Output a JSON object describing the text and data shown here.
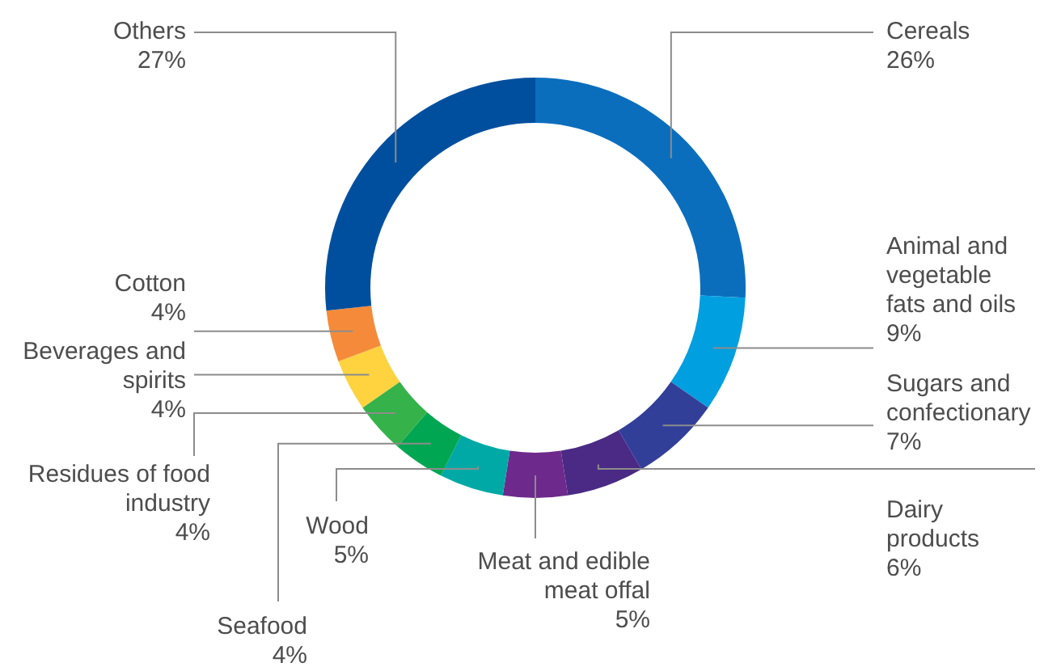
{
  "chart_data": {
    "type": "donut",
    "categories": [
      "Cereals",
      "Animal and vegetable fats and oils",
      "Sugars and confectionary",
      "Dairy products",
      "Meat and edible meat offal",
      "Wood",
      "Seafood",
      "Residues of food industry",
      "Beverages and spirits",
      "Cotton",
      "Others"
    ],
    "values": [
      26,
      9,
      7,
      6,
      5,
      5,
      4,
      4,
      4,
      4,
      27
    ],
    "value_labels": [
      "26%",
      "9%",
      "7%",
      "6%",
      "5%",
      "5%",
      "4%",
      "4%",
      "4%",
      "4%",
      "27%"
    ],
    "colors": [
      "#0a6ebd",
      "#009fe0",
      "#323f99",
      "#4a2a84",
      "#6d2a8c",
      "#00a9a6",
      "#00a651",
      "#35b24a",
      "#ffd33f",
      "#f58b3a",
      "#004f9e"
    ]
  }
}
